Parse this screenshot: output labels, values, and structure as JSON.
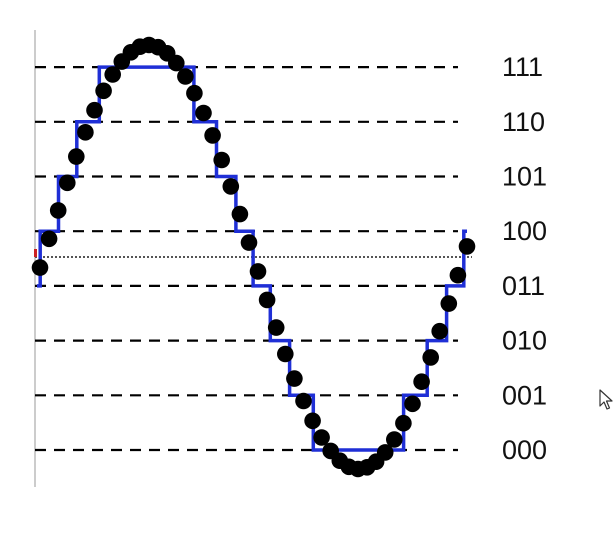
{
  "diagram": {
    "type": "quantized-sine",
    "levels": [
      {
        "code": "111",
        "index": 7
      },
      {
        "code": "110",
        "index": 6
      },
      {
        "code": "101",
        "index": 5
      },
      {
        "code": "100",
        "index": 4
      },
      {
        "code": "011",
        "index": 3
      },
      {
        "code": "010",
        "index": 2
      },
      {
        "code": "001",
        "index": 1
      },
      {
        "code": "000",
        "index": 0
      }
    ],
    "sample_count": 48,
    "colors": {
      "samples": "#000000",
      "staircase": "#1f2fd6",
      "level_lines": "#000000",
      "zero_line": "#555555",
      "axis": "#bbbbbb",
      "marker": "#cc2222"
    },
    "icons": {
      "cursor": "mouse-pointer-icon"
    }
  }
}
